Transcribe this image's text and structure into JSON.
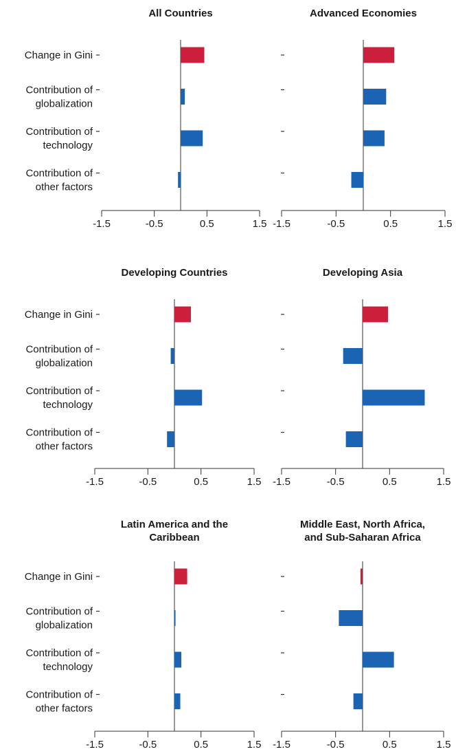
{
  "colors": {
    "gini": "#cc1f3c",
    "contribution": "#1b63b3"
  },
  "chart_data": [
    {
      "type": "bar",
      "title": "All Countries",
      "categories": [
        "Change in Gini",
        "Contribution of globalization",
        "Contribution of technology",
        "Contribution of other factors"
      ],
      "category_lines": [
        [
          "Change in Gini"
        ],
        [
          "Contribution of",
          "globalization"
        ],
        [
          "Contribution of",
          "technology"
        ],
        [
          "Contribution of",
          "other factors"
        ]
      ],
      "values": [
        0.45,
        0.08,
        0.42,
        -0.05
      ],
      "xlim": [
        -1.5,
        1.5
      ],
      "xticks": [
        "-1.5",
        "-0.5",
        "0.5",
        "1.5"
      ],
      "show_category_labels": true
    },
    {
      "type": "bar",
      "title": "Advanced Economies",
      "categories": [
        "Change in Gini",
        "Contribution of globalization",
        "Contribution of technology",
        "Contribution of other factors"
      ],
      "values": [
        0.57,
        0.42,
        0.39,
        -0.22
      ],
      "xlim": [
        -1.5,
        1.5
      ],
      "xticks": [
        "-1.5",
        "-0.5",
        "0.5",
        "1.5"
      ],
      "show_category_labels": false
    },
    {
      "type": "bar",
      "title": "Developing Countries",
      "categories": [
        "Change in Gini",
        "Contribution of globalization",
        "Contribution of technology",
        "Contribution of other factors"
      ],
      "category_lines": [
        [
          "Change in Gini"
        ],
        [
          "Contribution of",
          "globalization"
        ],
        [
          "Contribution of",
          "technology"
        ],
        [
          "Contribution of",
          "other factors"
        ]
      ],
      "values": [
        0.31,
        -0.07,
        0.52,
        -0.14
      ],
      "xlim": [
        -1.5,
        1.5
      ],
      "xticks": [
        "-1.5",
        "-0.5",
        "0.5",
        "1.5"
      ],
      "show_category_labels": true
    },
    {
      "type": "bar",
      "title": "Developing Asia",
      "categories": [
        "Change in Gini",
        "Contribution of globalization",
        "Contribution of technology",
        "Contribution of other factors"
      ],
      "values": [
        0.47,
        -0.36,
        1.15,
        -0.31
      ],
      "xlim": [
        -1.5,
        1.5
      ],
      "xticks": [
        "-1.5",
        "-0.5",
        "0.5",
        "1.5"
      ],
      "show_category_labels": false
    },
    {
      "type": "bar",
      "title": "Latin America and the Caribbean",
      "title_lines": [
        "Latin America and the",
        "Caribbean"
      ],
      "categories": [
        "Change in Gini",
        "Contribution of globalization",
        "Contribution of technology",
        "Contribution of other factors"
      ],
      "category_lines": [
        [
          "Change in Gini"
        ],
        [
          "Contribution of",
          "globalization"
        ],
        [
          "Contribution of",
          "technology"
        ],
        [
          "Contribution of",
          "other factors"
        ]
      ],
      "values": [
        0.24,
        0.02,
        0.13,
        0.11
      ],
      "xlim": [
        -1.5,
        1.5
      ],
      "xticks": [
        "-1.5",
        "-0.5",
        "0.5",
        "1.5"
      ],
      "show_category_labels": true
    },
    {
      "type": "bar",
      "title": "Middle East, North Africa, and Sub-Saharan Africa",
      "title_lines": [
        "Middle East, North Africa,",
        "and Sub-Saharan Africa"
      ],
      "categories": [
        "Change in Gini",
        "Contribution of globalization",
        "Contribution of technology",
        "Contribution of other factors"
      ],
      "values": [
        -0.04,
        -0.44,
        0.58,
        -0.17
      ],
      "xlim": [
        -1.5,
        1.5
      ],
      "xticks": [
        "-1.5",
        "-0.5",
        "0.5",
        "1.5"
      ],
      "show_category_labels": false
    }
  ]
}
